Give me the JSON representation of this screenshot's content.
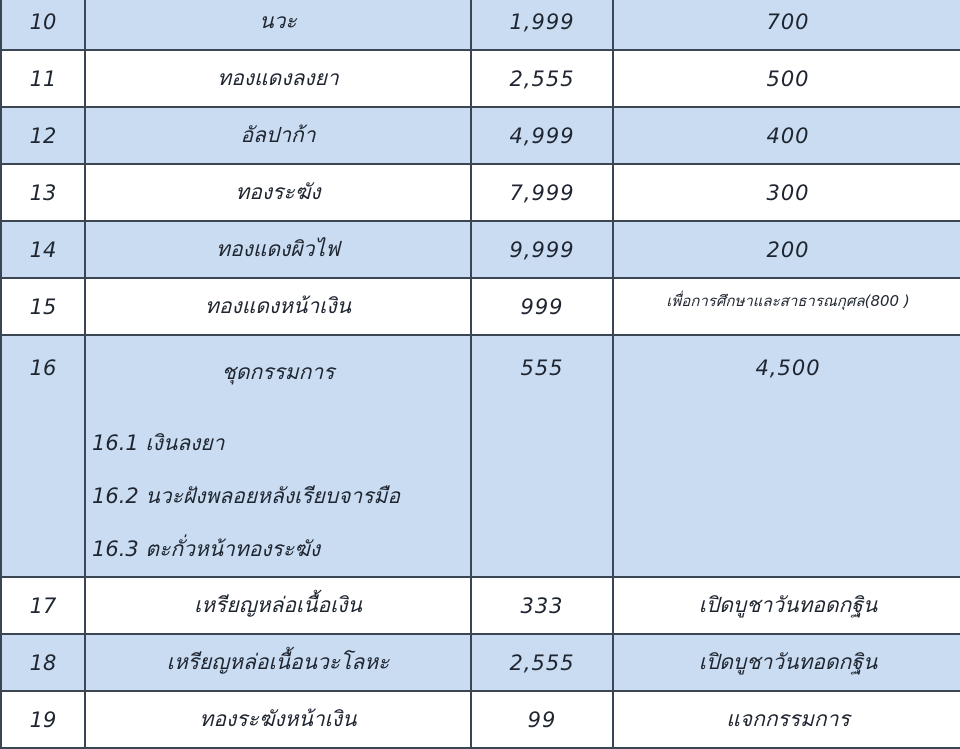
{
  "rows": [
    {
      "no": "10",
      "name": "นวะ",
      "price": "1,999",
      "qty": "700"
    },
    {
      "no": "11",
      "name": "ทองแดงลงยา",
      "price": "2,555",
      "qty": "500"
    },
    {
      "no": "12",
      "name": "อัลปาก้า",
      "price": "4,999",
      "qty": "400"
    },
    {
      "no": "13",
      "name": "ทองระฆัง",
      "price": "7,999",
      "qty": "300"
    },
    {
      "no": "14",
      "name": "ทองแดงผิวไฟ",
      "price": "9,999",
      "qty": "200"
    },
    {
      "no": "15",
      "name": "ทองแดงหน้าเงิน",
      "price": "999",
      "qty": "เพื่อการศึกษาและสาธารณกุศล(800 )"
    },
    {
      "no": "16",
      "name": "ชุดกรรมการ",
      "price": "555",
      "qty": "4,500",
      "sub": [
        "16.1 เงินลงยา",
        "16.2 นวะฝังพลอยหลังเรียบจารมือ",
        "16.3 ตะกั่วหน้าทองระฆัง"
      ]
    },
    {
      "no": "17",
      "name": "เหรียญหล่อเนื้อเงิน",
      "price": "333",
      "qty": "เปิดบูชาวันทอดกฐิน"
    },
    {
      "no": "18",
      "name": "เหรียญหล่อเนื้อนวะโลหะ",
      "price": "2,555",
      "qty": "เปิดบูชาวันทอดกฐิน"
    },
    {
      "no": "19",
      "name": "ทองระฆังหน้าเงิน",
      "price": "99",
      "qty": "แจกกรรมการ"
    }
  ],
  "colors": {
    "row_alt": "#cadcf1",
    "border": "#3a4654"
  }
}
